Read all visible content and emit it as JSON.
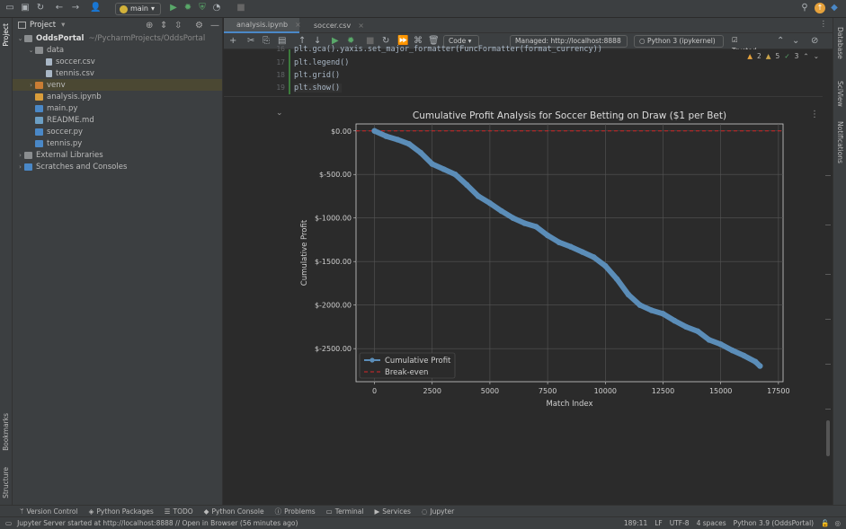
{
  "topbar": {
    "branch": "main"
  },
  "project": {
    "title": "Project",
    "tree": [
      {
        "label": "OddsPortal",
        "path": "~/PycharmProjects/OddsPortal",
        "type": "folder",
        "indent": 0,
        "expanded": true
      },
      {
        "label": "data",
        "type": "folder",
        "indent": 1,
        "expanded": true
      },
      {
        "label": "soccer.csv",
        "type": "csv",
        "indent": 2
      },
      {
        "label": "tennis.csv",
        "type": "csv",
        "indent": 2
      },
      {
        "label": "venv",
        "type": "folder-venv",
        "indent": 1,
        "expanded": false,
        "selected": true
      },
      {
        "label": "analysis.ipynb",
        "type": "nb",
        "indent": 1
      },
      {
        "label": "main.py",
        "type": "py",
        "indent": 1
      },
      {
        "label": "README.md",
        "type": "md",
        "indent": 1
      },
      {
        "label": "soccer.py",
        "type": "py",
        "indent": 1
      },
      {
        "label": "tennis.py",
        "type": "py",
        "indent": 1
      },
      {
        "label": "External Libraries",
        "type": "lib",
        "indent": 0,
        "expanded": false
      },
      {
        "label": "Scratches and Consoles",
        "type": "scratch",
        "indent": 0,
        "expanded": false
      }
    ]
  },
  "tabs": [
    {
      "label": "analysis.ipynb",
      "active": true
    },
    {
      "label": "soccer.csv",
      "active": false
    }
  ],
  "nbtoolbar": {
    "cell_type": "Code",
    "server": "Managed: http://localhost:8888",
    "kernel": "Python 3 (ipykernel)",
    "trusted": "Trusted"
  },
  "warnings": {
    "warn": "2",
    "weak": "5",
    "ok": "3"
  },
  "code": {
    "lines": [
      {
        "n": "16",
        "text": "plt.gca().yaxis.set_major_formatter(FuncFormatter(format_currency))"
      },
      {
        "n": "17",
        "text": "plt.legend()"
      },
      {
        "n": "18",
        "text": "plt.grid()"
      },
      {
        "n": "19",
        "text": "plt.show()"
      }
    ]
  },
  "chart_data": {
    "type": "line",
    "title": "Cumulative Profit Analysis for Soccer Betting on Draw ($1 per Bet)",
    "xlabel": "Match Index",
    "ylabel": "Cumulative Profit",
    "xlim": [
      -800,
      17700
    ],
    "ylim": [
      -2880,
      80
    ],
    "xticks": [
      0,
      2500,
      5000,
      7500,
      10000,
      12500,
      15000,
      17500
    ],
    "yticks": [
      0,
      -500,
      -1000,
      -1500,
      -2000,
      -2500
    ],
    "ytick_labels": [
      "$0.00",
      "$-500.00",
      "$-1000.00",
      "$-1500.00",
      "$-2000.00",
      "$-2500.00"
    ],
    "grid": true,
    "legend_position": "lower left",
    "colors": {
      "profit": "#5b8db8",
      "breakeven": "#d62728",
      "background": "#2b2b2b"
    },
    "series": [
      {
        "name": "Cumulative Profit",
        "x": [
          0,
          500,
          1000,
          1500,
          2000,
          2500,
          3000,
          3500,
          4000,
          4500,
          5000,
          5500,
          6000,
          6500,
          7000,
          7500,
          8000,
          8500,
          9000,
          9500,
          10000,
          10500,
          11000,
          11500,
          12000,
          12500,
          13000,
          13500,
          14000,
          14500,
          15000,
          15500,
          16000,
          16500,
          16700
        ],
        "y": [
          0,
          -60,
          -100,
          -150,
          -250,
          -380,
          -440,
          -500,
          -620,
          -750,
          -830,
          -920,
          -1000,
          -1060,
          -1100,
          -1200,
          -1280,
          -1330,
          -1390,
          -1450,
          -1550,
          -1700,
          -1880,
          -2000,
          -2060,
          -2100,
          -2180,
          -2250,
          -2300,
          -2400,
          -2450,
          -2520,
          -2580,
          -2650,
          -2700
        ]
      },
      {
        "name": "Break-even",
        "x": [
          0,
          16700
        ],
        "y": [
          0,
          0
        ],
        "style": "dashed"
      }
    ]
  },
  "bottombar": [
    "Version Control",
    "Python Packages",
    "TODO",
    "Python Console",
    "Problems",
    "Terminal",
    "Services",
    "Jupyter"
  ],
  "status": {
    "message": "Jupyter Server started at http://localhost:8888 // Open in Browser (56 minutes ago)",
    "position": "189:11",
    "line_sep": "LF",
    "encoding": "UTF-8",
    "indent": "4 spaces",
    "interpreter": "Python 3.9 (OddsPortal)"
  },
  "side": {
    "left": [
      "Project",
      "Bookmarks",
      "Structure"
    ],
    "right": [
      "Database",
      "SciView",
      "Notifications"
    ]
  }
}
